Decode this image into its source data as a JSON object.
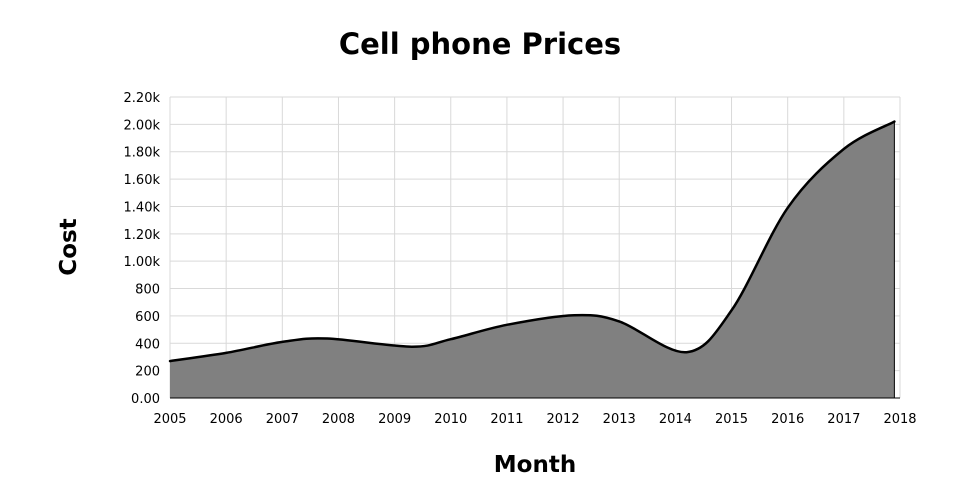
{
  "chart_data": {
    "type": "area",
    "title": "Cell phone Prices",
    "xlabel": "Month",
    "ylabel": "Cost",
    "x": [
      2005,
      2006,
      2007,
      2008,
      2009,
      2010,
      2011,
      2012,
      2013,
      2014,
      2015,
      2016,
      2017,
      2018
    ],
    "xlim": [
      2005,
      2018
    ],
    "ylim": [
      0,
      2200
    ],
    "y_ticks": [
      0,
      200,
      400,
      600,
      800,
      1000,
      1200,
      1400,
      1600,
      1800,
      2000,
      2200
    ],
    "y_tick_labels": [
      "0.00",
      "200",
      "400",
      "600",
      "800",
      "1.00k",
      "1.20k",
      "1.40k",
      "1.60k",
      "1.80k",
      "2.00k",
      "2.20k"
    ],
    "x_tick_labels": [
      "2005",
      "2006",
      "2007",
      "2008",
      "2009",
      "2010",
      "2011",
      "2012",
      "2013",
      "2014",
      "2015",
      "2016",
      "2017",
      "2018"
    ],
    "grid": true,
    "legend": "none",
    "fill_color": "#808080",
    "line_color": "#000000",
    "series": [
      {
        "points": [
          [
            2005.0,
            270
          ],
          [
            2006.0,
            330
          ],
          [
            2007.0,
            410
          ],
          [
            2007.8,
            435
          ],
          [
            2009.3,
            375
          ],
          [
            2010.0,
            430
          ],
          [
            2011.0,
            535
          ],
          [
            2012.2,
            605
          ],
          [
            2013.0,
            560
          ],
          [
            2014.2,
            335
          ],
          [
            2015.0,
            640
          ],
          [
            2016.0,
            1390
          ],
          [
            2017.0,
            1820
          ],
          [
            2017.9,
            2020
          ]
        ]
      }
    ]
  }
}
